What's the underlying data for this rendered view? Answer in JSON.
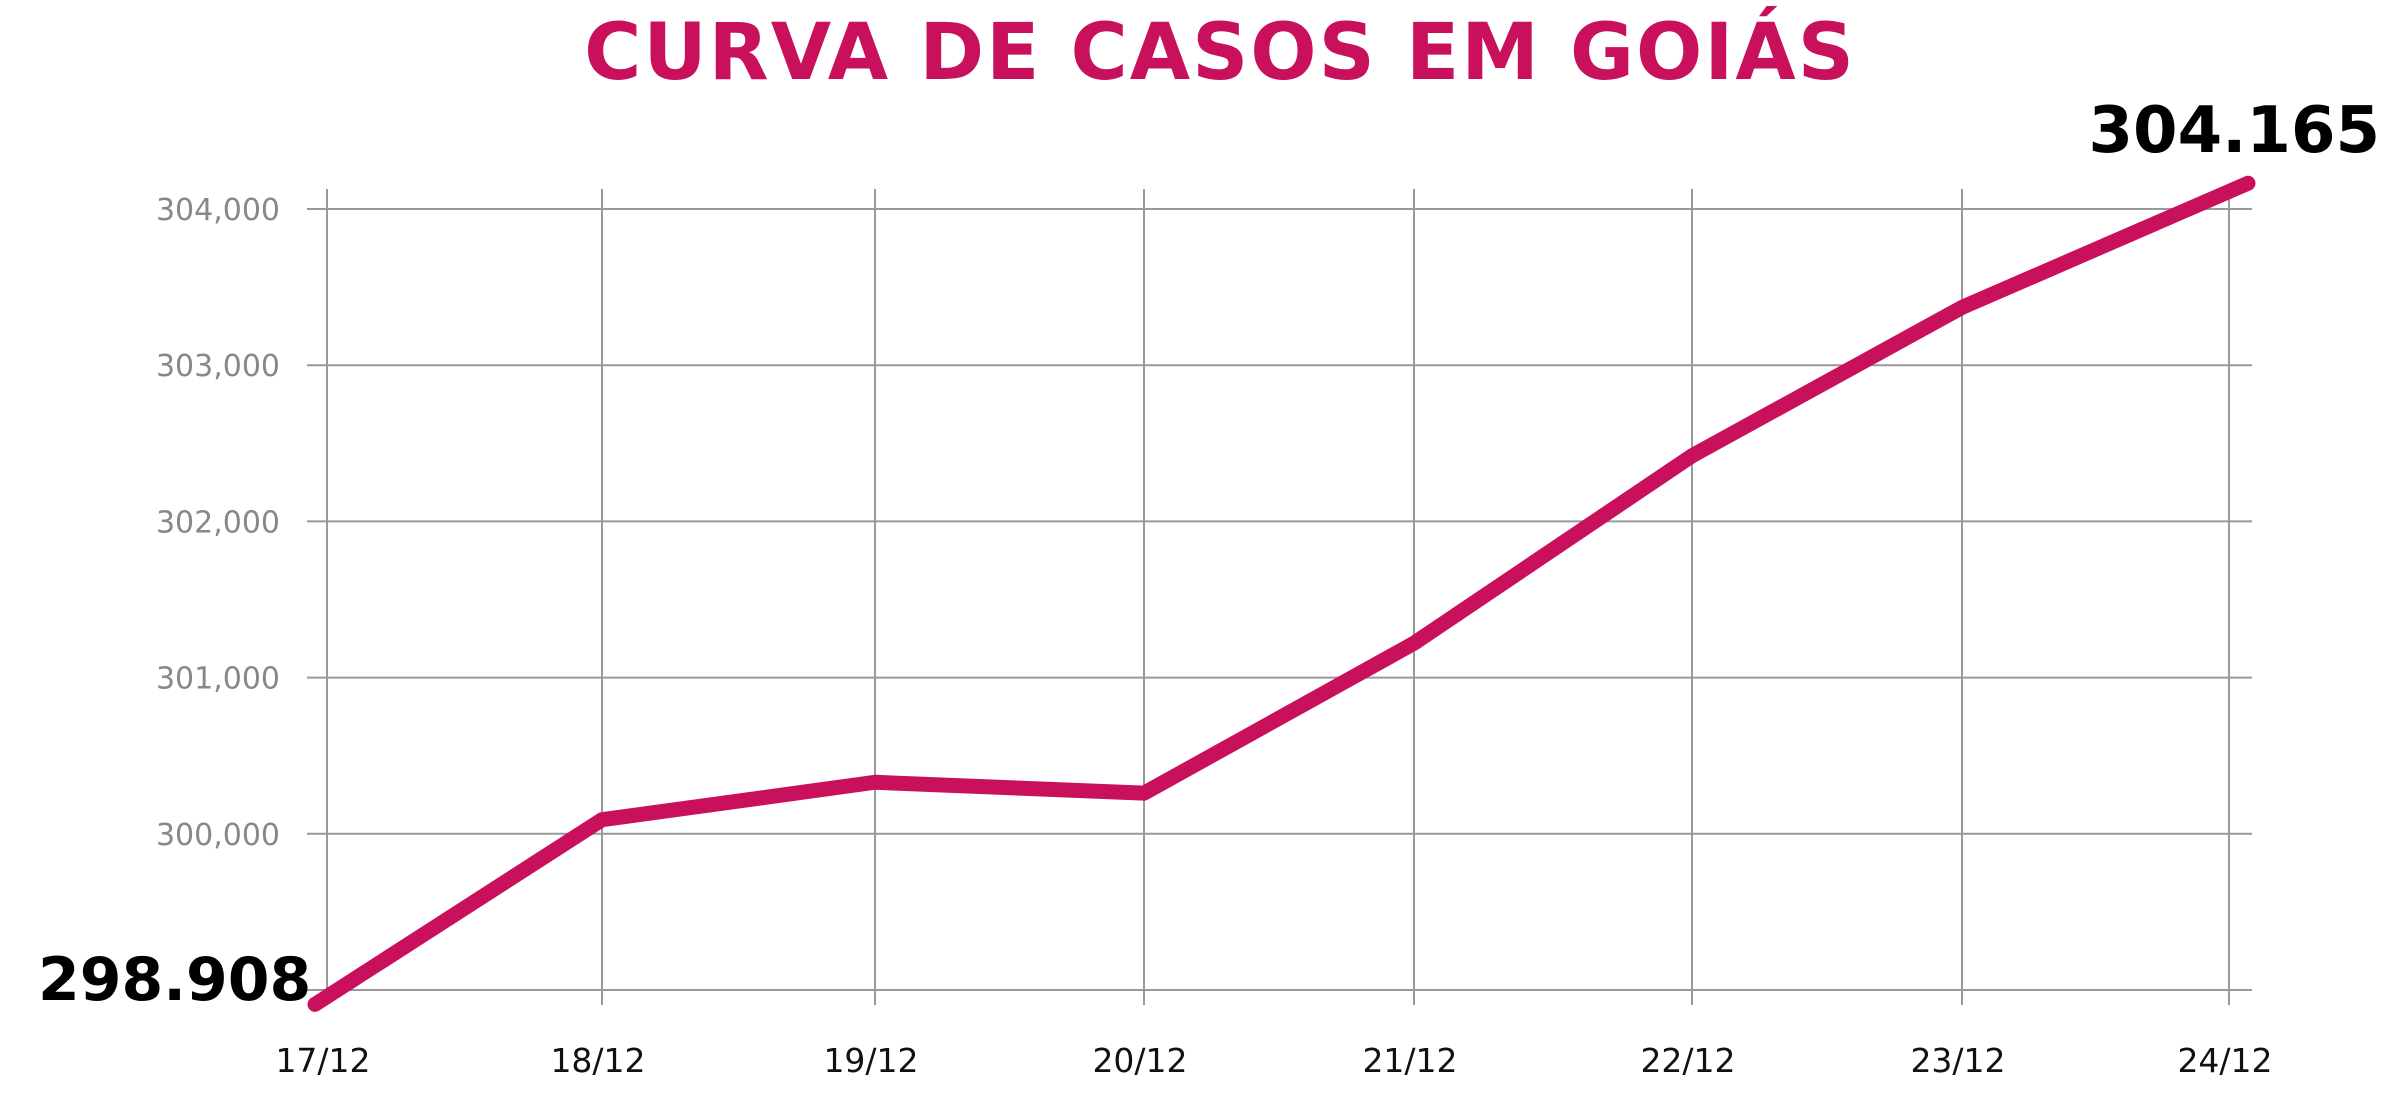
{
  "chart_data": {
    "type": "line",
    "title": "CURVA DE CASOS EM GOIÁS",
    "xlabel": "",
    "ylabel": "",
    "categories": [
      "17/12",
      "18/12",
      "19/12",
      "20/12",
      "21/12",
      "22/12",
      "23/12",
      "24/12"
    ],
    "series": [
      {
        "values": [
          298908,
          300090,
          300330,
          300260,
          301220,
          302420,
          303370,
          304165
        ]
      }
    ],
    "ylim": [
      299000,
      304000
    ],
    "yticks": [
      304000,
      303000,
      302000,
      301000,
      300000,
      299000
    ],
    "ytick_labels": [
      "304,000",
      "303,000",
      "302,000",
      "301,000",
      "300,000",
      ""
    ],
    "annotations": {
      "first": "298.908",
      "last": "304.165"
    },
    "grid": true,
    "colors": {
      "line": "#C8105C",
      "grid": "#999999",
      "tick_label": "#888888",
      "annotation": "#000000"
    }
  }
}
